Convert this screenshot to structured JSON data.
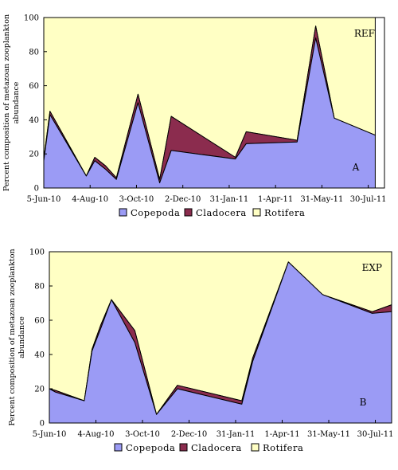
{
  "chart_data": {
    "type": "area",
    "stacked": true,
    "ylabel": "Percent composition of metazoan zooplankton abundance",
    "xlabel": "",
    "ylim": [
      0,
      100
    ],
    "yticks": [
      0,
      20,
      40,
      60,
      80,
      100
    ],
    "x_axis_type": "date",
    "xticks": [
      {
        "date": "2010-06-05",
        "label": "5-Jun-10"
      },
      {
        "date": "2010-08-04",
        "label": "4-Aug-10"
      },
      {
        "date": "2010-10-03",
        "label": "3-Oct-10"
      },
      {
        "date": "2010-12-02",
        "label": "2-Dec-10"
      },
      {
        "date": "2011-01-31",
        "label": "31-Jan-11"
      },
      {
        "date": "2011-04-01",
        "label": "1-Apr-11"
      },
      {
        "date": "2011-05-31",
        "label": "31-May-11"
      },
      {
        "date": "2011-07-30",
        "label": "30-Jul-11"
      }
    ],
    "x_range": [
      "2010-06-05",
      "2011-08-20"
    ],
    "legend": {
      "placement": "bottom",
      "entries": [
        "Copepoda",
        "Cladocera",
        "Rotifera"
      ]
    },
    "colors": {
      "Copepoda": "#9b9bf5",
      "Cladocera": "#8b2c4e",
      "Rotifera": "#ffffc4"
    },
    "panels": [
      {
        "label": "A",
        "tag": "REF",
        "dates": [
          "2010-06-05",
          "2010-06-13",
          "2010-07-30",
          "2010-08-10",
          "2010-08-24",
          "2010-09-07",
          "2010-10-05",
          "2010-11-02",
          "2010-11-17",
          "2011-02-08",
          "2011-02-22",
          "2011-04-29",
          "2011-05-23",
          "2011-06-16",
          "2011-08-08"
        ],
        "series": [
          {
            "name": "Copepoda",
            "values": [
              16,
              43,
              7,
              16,
              11,
              5,
              50,
              3,
              22,
              17,
              26,
              27,
              88,
              41,
              31
            ]
          },
          {
            "name": "Cladocera",
            "values": [
              1,
              2,
              0,
              2,
              2,
              1,
              5,
              2,
              20,
              1,
              7,
              1,
              7,
              0,
              0
            ]
          },
          {
            "name": "Rotifera",
            "values": [
              83,
              55,
              93,
              82,
              87,
              94,
              45,
              95,
              58,
              82,
              67,
              72,
              5,
              59,
              69
            ]
          }
        ]
      },
      {
        "label": "B",
        "tag": "EXP",
        "dates": [
          "2010-06-05",
          "2010-06-13",
          "2010-07-20",
          "2010-07-30",
          "2010-08-10",
          "2010-08-24",
          "2010-09-23",
          "2010-10-21",
          "2010-11-17",
          "2011-02-08",
          "2011-02-22",
          "2011-04-09",
          "2011-05-23",
          "2011-07-26",
          "2011-08-20"
        ],
        "series": [
          {
            "name": "Copepoda",
            "values": [
              20,
              18,
              13,
              42,
              55,
              72,
              47,
              5,
              20,
              11,
              36,
              94,
              75,
              64,
              65
            ]
          },
          {
            "name": "Cladocera",
            "values": [
              0,
              1,
              0,
              1,
              2,
              0,
              7,
              0,
              2,
              2,
              2,
              0,
              0,
              1,
              4
            ]
          },
          {
            "name": "Rotifera",
            "values": [
              80,
              81,
              87,
              57,
              43,
              28,
              46,
              95,
              78,
              87,
              62,
              6,
              25,
              35,
              31
            ]
          }
        ]
      }
    ]
  }
}
